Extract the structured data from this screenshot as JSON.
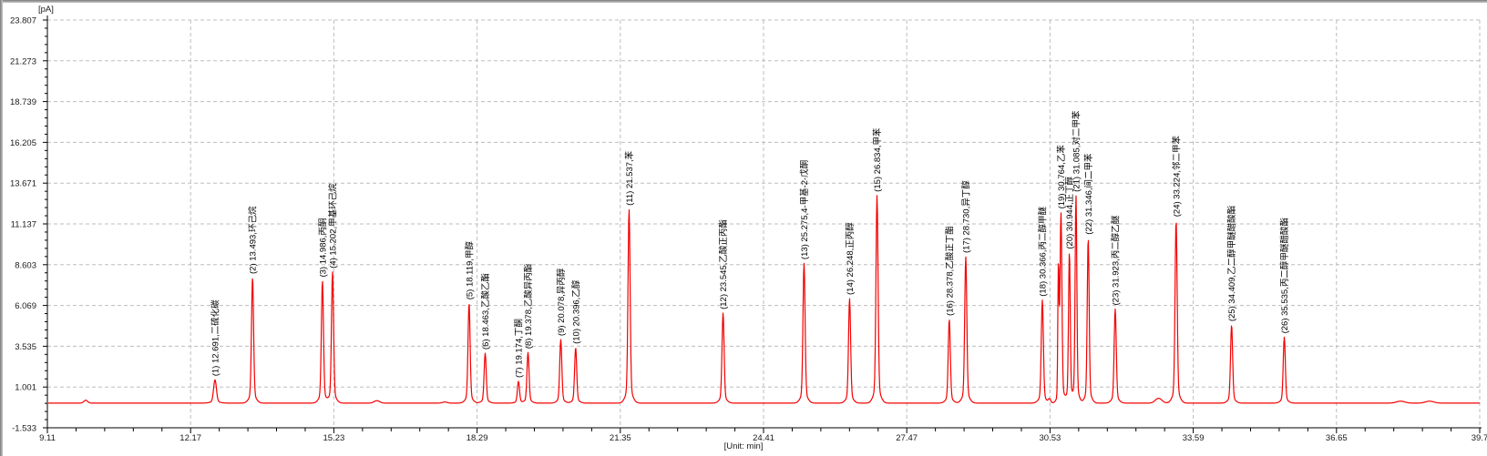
{
  "window": {
    "background": "#ffffff",
    "frame_dark": "#7d7d7d",
    "frame_light": "#c6c6c6"
  },
  "chart_data": {
    "type": "line",
    "description_kind": "gas-chromatogram",
    "trace_color": "#f40000",
    "grid_color": "#bdbdbd",
    "axis_color": "#000000",
    "text_color": "#1a1a1a",
    "baseline_pA": 0.0,
    "y_axis": {
      "unit_label": "[pA]",
      "range": [
        -1.533,
        23.807
      ],
      "tick_values": [
        23.807,
        21.273,
        18.739,
        16.205,
        13.671,
        11.137,
        8.603,
        6.069,
        3.535,
        1.001,
        -1.533
      ],
      "tick_labels": [
        "23.807",
        "21.273",
        "18.739",
        "16.205",
        "13.671",
        "11.137",
        "8.603",
        "6.069",
        "3.535",
        "1.001",
        "-1.533"
      ],
      "minor_divisions": 5
    },
    "x_axis": {
      "unit_label": "[Unit: min]",
      "range": [
        9.11,
        39.71
      ],
      "tick_values": [
        9.11,
        12.17,
        15.23,
        18.29,
        21.35,
        24.41,
        27.47,
        30.53,
        33.59,
        36.65,
        39.71
      ],
      "tick_labels": [
        "9.11",
        "12.17",
        "15.23",
        "18.29",
        "21.35",
        "24.41",
        "27.47",
        "30.53",
        "33.59",
        "36.65",
        "39.7"
      ],
      "minor_divisions": 5
    },
    "peak_label_format": "({num}) {rt},{name}",
    "peaks": [
      {
        "num": 1,
        "rt": 12.691,
        "name": "二硫化碳",
        "apex_pA": 1.45,
        "sigma_min": 0.03
      },
      {
        "num": 2,
        "rt": 13.493,
        "name": "环己烷",
        "apex_pA": 7.8,
        "sigma_min": 0.022
      },
      {
        "num": 3,
        "rt": 14.986,
        "name": "丙酮",
        "apex_pA": 7.6,
        "sigma_min": 0.022
      },
      {
        "num": 4,
        "rt": 15.202,
        "name": "甲基环己烷",
        "apex_pA": 8.15,
        "sigma_min": 0.022
      },
      {
        "num": 5,
        "rt": 18.119,
        "name": "甲醇",
        "apex_pA": 6.2,
        "sigma_min": 0.022
      },
      {
        "num": 6,
        "rt": 18.463,
        "name": "乙酸乙酯",
        "apex_pA": 3.1,
        "sigma_min": 0.022
      },
      {
        "num": 7,
        "rt": 19.174,
        "name": "丁酮",
        "apex_pA": 1.35,
        "sigma_min": 0.022
      },
      {
        "num": 8,
        "rt": 19.378,
        "name": "乙酸异丙酯",
        "apex_pA": 3.15,
        "sigma_min": 0.022
      },
      {
        "num": 9,
        "rt": 20.078,
        "name": "异丙醇",
        "apex_pA": 3.95,
        "sigma_min": 0.022
      },
      {
        "num": 10,
        "rt": 20.396,
        "name": "乙醇",
        "apex_pA": 3.45,
        "sigma_min": 0.022
      },
      {
        "num": 11,
        "rt": 21.537,
        "name": "苯",
        "apex_pA": 12.05,
        "sigma_min": 0.022
      },
      {
        "num": 12,
        "rt": 23.545,
        "name": "乙酸正丙酯",
        "apex_pA": 5.6,
        "sigma_min": 0.022
      },
      {
        "num": 13,
        "rt": 25.275,
        "name": "4-甲基-2-戊酮",
        "apex_pA": 8.7,
        "sigma_min": 0.022
      },
      {
        "num": 14,
        "rt": 26.248,
        "name": "正丙醇",
        "apex_pA": 6.5,
        "sigma_min": 0.022
      },
      {
        "num": 15,
        "rt": 26.834,
        "name": "甲苯",
        "apex_pA": 12.9,
        "sigma_min": 0.022
      },
      {
        "num": 16,
        "rt": 28.378,
        "name": "乙酸正丁酯",
        "apex_pA": 5.2,
        "sigma_min": 0.022
      },
      {
        "num": 17,
        "rt": 28.73,
        "name": "异丁醇",
        "apex_pA": 9.1,
        "sigma_min": 0.022
      },
      {
        "num": 18,
        "rt": 30.366,
        "name": "丙二醇甲醚",
        "apex_pA": 6.4,
        "sigma_min": 0.022
      },
      {
        "num": 19,
        "rt": 30.764,
        "name": "乙苯",
        "apex_pA": 11.85,
        "sigma_min": 0.02
      },
      {
        "num": 20,
        "rt": 30.944,
        "name": "正丁醇",
        "apex_pA": 9.35,
        "sigma_min": 0.018
      },
      {
        "num": 21,
        "rt": 31.085,
        "name": "对二甲苯",
        "apex_pA": 12.9,
        "sigma_min": 0.018
      },
      {
        "num": 22,
        "rt": 31.346,
        "name": "间二甲苯",
        "apex_pA": 10.25,
        "sigma_min": 0.02
      },
      {
        "num": 23,
        "rt": 31.923,
        "name": "丙二醇乙醚",
        "apex_pA": 5.85,
        "sigma_min": 0.022
      },
      {
        "num": 24,
        "rt": 33.224,
        "name": "邻二甲苯",
        "apex_pA": 11.35,
        "sigma_min": 0.022
      },
      {
        "num": 25,
        "rt": 34.409,
        "name": "乙二醇甲醚醋酸酯",
        "apex_pA": 4.85,
        "sigma_min": 0.022
      },
      {
        "num": 26,
        "rt": 35.535,
        "name": "丙二醇甲醚醋酸酯",
        "apex_pA": 4.1,
        "sigma_min": 0.022
      }
    ],
    "unlabeled_features": [
      {
        "rt": 9.93,
        "height_pA": 0.18,
        "sigma_min": 0.04
      },
      {
        "rt": 16.15,
        "height_pA": 0.15,
        "sigma_min": 0.06
      },
      {
        "rt": 17.6,
        "height_pA": 0.07,
        "sigma_min": 0.05
      },
      {
        "rt": 30.52,
        "height_pA": 0.25,
        "sigma_min": 0.025
      },
      {
        "rt": 30.71,
        "height_pA": 8.1,
        "sigma_min": 0.013
      },
      {
        "rt": 32.85,
        "height_pA": 0.3,
        "sigma_min": 0.07
      },
      {
        "rt": 38.02,
        "height_pA": 0.12,
        "sigma_min": 0.09
      },
      {
        "rt": 38.64,
        "height_pA": 0.12,
        "sigma_min": 0.09
      }
    ]
  }
}
